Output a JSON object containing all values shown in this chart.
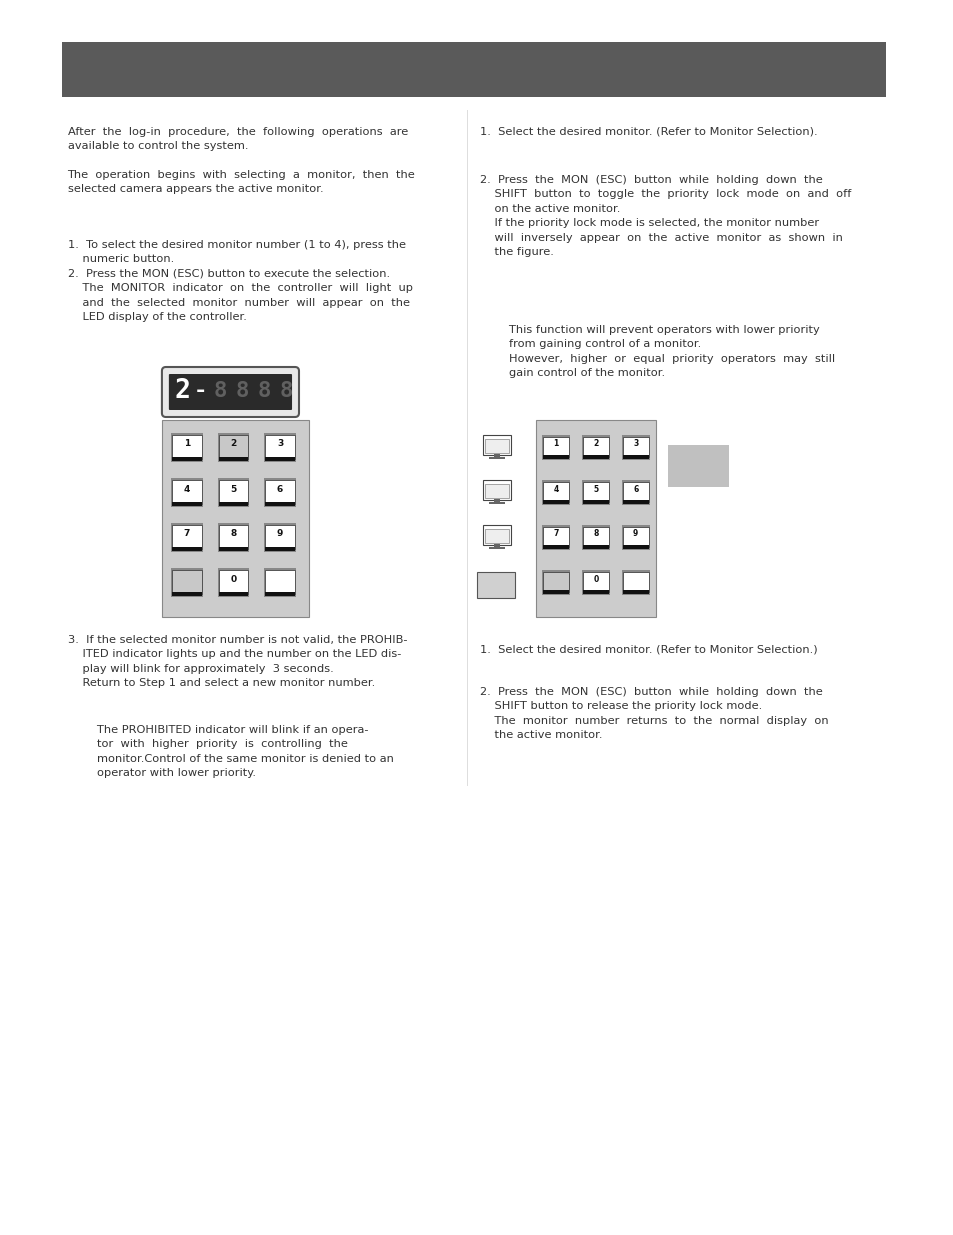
{
  "bg_color": "#ffffff",
  "header_color": "#5a5a5a",
  "text_color": "#333333",
  "body_fontsize": 8.2,
  "intro_text_1": "After  the  log-in  procedure,  the  following  operations  are\navailable to control the system.",
  "intro_text_2": "The  operation  begins  with  selecting  a  monitor,  then  the\nselected camera appears the active monitor.",
  "left_item12": "1.  To select the desired monitor number (1 to 4), press the\n    numeric button.\n2.  Press the MON (ESC) button to execute the selection.\n    The  MONITOR  indicator  on  the  controller  will  light  up\n    and  the  selected  monitor  number  will  appear  on  the\n    LED display of the controller.",
  "left_item3": "3.  If the selected monitor number is not valid, the PROHIB-\n    ITED indicator lights up and the number on the LED dis-\n    play will blink for approximately  3 seconds.\n    Return to Step 1 and select a new monitor number.",
  "left_indent": "        The PROHIBITED indicator will blink if an opera-\n        tor  with  higher  priority  is  controlling  the\n        monitor.Control of the same monitor is denied to an\n        operator with lower priority.",
  "right_item1_top": "1.  Select the desired monitor. (Refer to Monitor Selection).",
  "right_item2_top": "2.  Press  the  MON  (ESC)  button  while  holding  down  the\n    SHIFT  button  to  toggle  the  priority  lock  mode  on  and  off\n    on the active monitor.\n    If the priority lock mode is selected, the monitor number\n    will  inversely  appear  on  the  active  monitor  as  shown  in\n    the figure.",
  "right_indent_top": "        This function will prevent operators with lower priority\n        from gaining control of a monitor.\n        However,  higher  or  equal  priority  operators  may  still\n        gain control of the monitor.",
  "right_item1_bot": "1.  Select the desired monitor. (Refer to Monitor Selection.)",
  "right_item2_bot": "2.  Press  the  MON  (ESC)  button  while  holding  down  the\n    SHIFT button to release the priority lock mode.\n    The  monitor  number  returns  to  the  normal  display  on\n    the active monitor."
}
